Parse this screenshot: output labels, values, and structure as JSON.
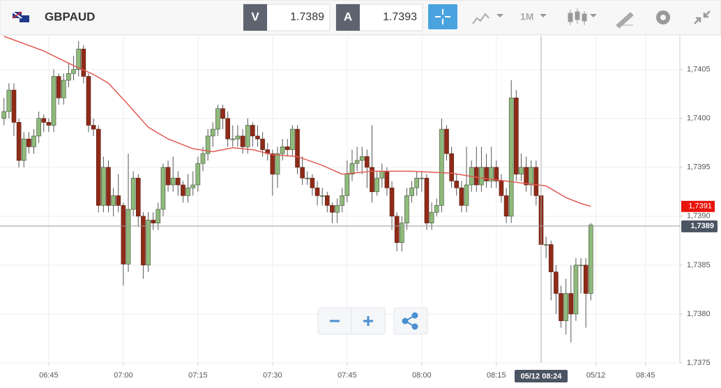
{
  "toolbar": {
    "symbol": "GBPAUD",
    "bid_label": "V",
    "bid": "1.7389",
    "ask_label": "A",
    "ask": "1.7393",
    "timeframe": "1M"
  },
  "chart_data": {
    "type": "candlestick",
    "x": [
      396,
      397,
      398,
      399,
      400,
      401,
      402,
      403,
      404,
      405,
      406,
      407,
      408,
      409,
      410,
      411,
      412,
      413,
      414,
      415,
      416,
      417,
      418,
      419,
      420,
      421,
      422,
      423,
      424,
      425,
      426,
      427,
      428,
      429,
      430,
      431,
      432,
      433,
      434,
      435,
      436,
      437,
      438,
      439,
      440,
      441,
      442,
      443,
      444,
      445,
      446,
      447,
      448,
      449,
      450,
      451,
      452,
      453,
      454,
      455,
      456,
      457,
      458,
      459,
      460,
      461,
      462,
      463,
      464,
      465,
      466,
      467,
      468,
      469,
      470,
      471,
      472,
      473,
      474,
      475,
      476,
      477,
      478,
      479,
      480,
      481,
      482,
      483,
      484,
      485,
      486,
      487,
      488,
      489,
      490,
      491,
      492,
      493,
      494,
      495,
      496,
      497,
      498,
      499,
      500,
      501,
      502,
      503,
      504,
      505,
      506,
      507,
      508,
      509,
      510,
      511,
      512,
      513,
      514
    ],
    "candles": [
      [
        1.74,
        1.74021,
        1.73993,
        1.74007
      ],
      [
        1.74007,
        1.74036,
        1.74,
        1.74029
      ],
      [
        1.74029,
        1.74036,
        1.73982,
        1.73996
      ],
      [
        1.73996,
        1.74,
        1.7395,
        1.73957
      ],
      [
        1.73957,
        1.73986,
        1.7395,
        1.73979
      ],
      [
        1.73979,
        1.73986,
        1.73964,
        1.73971
      ],
      [
        1.73971,
        1.73989,
        1.73964,
        1.73982
      ],
      [
        1.73982,
        1.74007,
        1.73975,
        1.74
      ],
      [
        1.74,
        1.74004,
        1.73986,
        1.73996
      ],
      [
        1.73996,
        1.74,
        1.73986,
        1.73993
      ],
      [
        1.73993,
        1.7405,
        1.73986,
        1.74043
      ],
      [
        1.74043,
        1.74046,
        1.74014,
        1.74021
      ],
      [
        1.74021,
        1.74046,
        1.74014,
        1.74039
      ],
      [
        1.74039,
        1.74057,
        1.74032,
        1.74046
      ],
      [
        1.74046,
        1.74064,
        1.74039,
        1.7405
      ],
      [
        1.7405,
        1.74079,
        1.74043,
        1.74071
      ],
      [
        1.74071,
        1.74075,
        1.74036,
        1.74043
      ],
      [
        1.74043,
        1.74046,
        1.73986,
        1.73993
      ],
      [
        1.73993,
        1.74,
        1.73982,
        1.73989
      ],
      [
        1.73989,
        1.73993,
        1.73904,
        1.73911
      ],
      [
        1.73911,
        1.73961,
        1.73904,
        1.7395
      ],
      [
        1.7395,
        1.73957,
        1.73904,
        1.73911
      ],
      [
        1.73911,
        1.73929,
        1.739,
        1.73921
      ],
      [
        1.73921,
        1.73943,
        1.73904,
        1.73911
      ],
      [
        1.73911,
        1.73914,
        1.73829,
        1.73851
      ],
      [
        1.73851,
        1.73964,
        1.73843,
        1.73907
      ],
      [
        1.73907,
        1.73946,
        1.739,
        1.73939
      ],
      [
        1.73939,
        1.73943,
        1.73889,
        1.739
      ],
      [
        1.739,
        1.73904,
        1.73836,
        1.7385
      ],
      [
        1.7385,
        1.73904,
        1.73843,
        1.73896
      ],
      [
        1.73896,
        1.73904,
        1.73886,
        1.73893
      ],
      [
        1.73893,
        1.73914,
        1.73886,
        1.73907
      ],
      [
        1.73907,
        1.73954,
        1.739,
        1.7395
      ],
      [
        1.7395,
        1.73957,
        1.73925,
        1.73932
      ],
      [
        1.73932,
        1.73961,
        1.73925,
        1.73939
      ],
      [
        1.73939,
        1.73946,
        1.73921,
        1.73932
      ],
      [
        1.73932,
        1.73936,
        1.73914,
        1.73921
      ],
      [
        1.73921,
        1.73943,
        1.73914,
        1.73929
      ],
      [
        1.73929,
        1.73946,
        1.73921,
        1.73932
      ],
      [
        1.73932,
        1.73961,
        1.73925,
        1.73954
      ],
      [
        1.73954,
        1.73971,
        1.73946,
        1.73964
      ],
      [
        1.73964,
        1.73989,
        1.73957,
        1.73982
      ],
      [
        1.73982,
        1.73996,
        1.73971,
        1.73989
      ],
      [
        1.73989,
        1.74014,
        1.73982,
        1.7401
      ],
      [
        1.7401,
        1.74014,
        1.73989,
        1.74
      ],
      [
        1.74,
        1.74007,
        1.73971,
        1.73979
      ],
      [
        1.73979,
        1.73993,
        1.73971,
        1.73979
      ],
      [
        1.73979,
        1.73993,
        1.73971,
        1.73982
      ],
      [
        1.73982,
        1.73989,
        1.73964,
        1.73971
      ],
      [
        1.73971,
        1.74,
        1.73964,
        1.73993
      ],
      [
        1.73993,
        1.73996,
        1.73971,
        1.73982
      ],
      [
        1.73982,
        1.73993,
        1.73971,
        1.73979
      ],
      [
        1.73979,
        1.73986,
        1.73961,
        1.73968
      ],
      [
        1.73968,
        1.73975,
        1.73957,
        1.73964
      ],
      [
        1.73964,
        1.73968,
        1.73921,
        1.73943
      ],
      [
        1.73943,
        1.73971,
        1.73929,
        1.73964
      ],
      [
        1.73964,
        1.73979,
        1.73957,
        1.73971
      ],
      [
        1.73971,
        1.73979,
        1.73961,
        1.73968
      ],
      [
        1.73968,
        1.73993,
        1.73961,
        1.73989
      ],
      [
        1.73989,
        1.73993,
        1.73943,
        1.7395
      ],
      [
        1.7395,
        1.73961,
        1.73932,
        1.73939
      ],
      [
        1.73939,
        1.73946,
        1.73932,
        1.73939
      ],
      [
        1.73939,
        1.73943,
        1.73921,
        1.73929
      ],
      [
        1.73929,
        1.73936,
        1.73911,
        1.73921
      ],
      [
        1.73921,
        1.73929,
        1.73911,
        1.73921
      ],
      [
        1.73921,
        1.73925,
        1.73904,
        1.73911
      ],
      [
        1.73911,
        1.73914,
        1.73893,
        1.73904
      ],
      [
        1.73904,
        1.73918,
        1.73893,
        1.73911
      ],
      [
        1.73911,
        1.73929,
        1.73904,
        1.73921
      ],
      [
        1.73921,
        1.73957,
        1.73914,
        1.73943
      ],
      [
        1.73943,
        1.73968,
        1.73936,
        1.73954
      ],
      [
        1.73954,
        1.73971,
        1.73946,
        1.73957
      ],
      [
        1.73957,
        1.73971,
        1.73943,
        1.73961
      ],
      [
        1.73961,
        1.73968,
        1.73929,
        1.7395
      ],
      [
        1.7395,
        1.73993,
        1.73914,
        1.73925
      ],
      [
        1.73925,
        1.73946,
        1.73921,
        1.73939
      ],
      [
        1.73939,
        1.73954,
        1.73929,
        1.73946
      ],
      [
        1.73946,
        1.7395,
        1.73921,
        1.73929
      ],
      [
        1.73929,
        1.73936,
        1.73886,
        1.739
      ],
      [
        1.739,
        1.73904,
        1.73864,
        1.73873
      ],
      [
        1.73873,
        1.739,
        1.73864,
        1.73893
      ],
      [
        1.73893,
        1.73929,
        1.73886,
        1.73921
      ],
      [
        1.73921,
        1.73936,
        1.73914,
        1.73929
      ],
      [
        1.73929,
        1.73946,
        1.73921,
        1.73939
      ],
      [
        1.73939,
        1.73946,
        1.73925,
        1.73939
      ],
      [
        1.73939,
        1.73943,
        1.73886,
        1.73893
      ],
      [
        1.73893,
        1.73914,
        1.73886,
        1.73904
      ],
      [
        1.73904,
        1.73918,
        1.739,
        1.73911
      ],
      [
        1.73911,
        1.74,
        1.73904,
        1.73989
      ],
      [
        1.73989,
        1.73993,
        1.73957,
        1.73964
      ],
      [
        1.73964,
        1.73971,
        1.73929,
        1.73936
      ],
      [
        1.73936,
        1.73943,
        1.73921,
        1.73929
      ],
      [
        1.73929,
        1.73936,
        1.73904,
        1.73911
      ],
      [
        1.73911,
        1.73971,
        1.73904,
        1.73932
      ],
      [
        1.73932,
        1.73957,
        1.73925,
        1.7395
      ],
      [
        1.7395,
        1.73971,
        1.73925,
        1.73932
      ],
      [
        1.73932,
        1.73971,
        1.73925,
        1.7395
      ],
      [
        1.7395,
        1.73964,
        1.73929,
        1.73936
      ],
      [
        1.73936,
        1.73971,
        1.73929,
        1.7395
      ],
      [
        1.7395,
        1.73957,
        1.73929,
        1.73936
      ],
      [
        1.73936,
        1.73943,
        1.73914,
        1.73921
      ],
      [
        1.73921,
        1.73929,
        1.73893,
        1.739
      ],
      [
        1.739,
        1.74039,
        1.73893,
        1.74021
      ],
      [
        1.74021,
        1.74029,
        1.73936,
        1.73943
      ],
      [
        1.73943,
        1.73964,
        1.73936,
        1.7395
      ],
      [
        1.7395,
        1.73961,
        1.73925,
        1.73932
      ],
      [
        1.73932,
        1.73957,
        1.73921,
        1.7395
      ],
      [
        1.7395,
        1.73957,
        1.73911,
        1.73921
      ],
      [
        1.73921,
        1.73929,
        1.73864,
        1.73871
      ],
      [
        1.73871,
        1.73879,
        1.73857,
        1.73871
      ],
      [
        1.73871,
        1.73875,
        1.73814,
        1.73843
      ],
      [
        1.73843,
        1.7385,
        1.738,
        1.73821
      ],
      [
        1.73821,
        1.73829,
        1.73786,
        1.73793
      ],
      [
        1.73793,
        1.73836,
        1.73779,
        1.73821
      ],
      [
        1.73821,
        1.7385,
        1.73771,
        1.738
      ],
      [
        1.738,
        1.73857,
        1.73793,
        1.7385
      ],
      [
        1.7385,
        1.73857,
        1.73821,
        1.7385
      ],
      [
        1.7385,
        1.73857,
        1.73786,
        1.73821
      ],
      [
        1.73821,
        1.73893,
        1.73814,
        1.73891
      ]
    ],
    "up_color": "#8fba7c",
    "down_color": "#8e2b18",
    "moving_average": {
      "color": "#e05a52",
      "x": [
        396,
        404,
        410,
        414,
        417,
        421,
        425,
        429,
        434,
        438,
        442,
        446,
        450,
        455,
        460,
        464,
        470,
        478,
        486,
        492,
        500,
        505,
        509,
        512,
        514
      ],
      "values": [
        1.74084,
        1.74069,
        1.74054,
        1.74045,
        1.74036,
        1.74014,
        1.73991,
        1.73979,
        1.73969,
        1.73966,
        1.7397,
        1.73968,
        1.73963,
        1.73961,
        1.73952,
        1.73943,
        1.73946,
        1.73946,
        1.73944,
        1.73939,
        1.73934,
        1.73931,
        1.73919,
        1.73913,
        1.7391
      ]
    },
    "xlim": [
      395.2,
      531.9
    ],
    "ylim": [
      1.7375,
      1.74084
    ],
    "yticks": [
      {
        "value": 1.7375,
        "label": "1,7375"
      },
      {
        "value": 1.738,
        "label": "1,7380"
      },
      {
        "value": 1.7385,
        "label": "1,7385"
      },
      {
        "value": 1.739,
        "label": "1,7390"
      },
      {
        "value": 1.7395,
        "label": "1,7395"
      },
      {
        "value": 1.74,
        "label": "1,7400"
      },
      {
        "value": 1.7405,
        "label": "1,7405"
      }
    ],
    "xticks": [
      {
        "value": 405,
        "label": "06:45"
      },
      {
        "value": 420,
        "label": "07:00"
      },
      {
        "value": 435,
        "label": "07:15"
      },
      {
        "value": 450,
        "label": "07:30"
      },
      {
        "value": 465,
        "label": "07:45"
      },
      {
        "value": 480,
        "label": "08:00"
      },
      {
        "value": 495,
        "label": "08:15"
      },
      {
        "value": 515,
        "label": "05/12"
      },
      {
        "value": 525,
        "label": "08:45"
      }
    ],
    "ma_last": {
      "value": 1.7391,
      "label": "1,7391"
    },
    "last_price": {
      "value": 1.7389,
      "label": "1,7389"
    },
    "crosshair": {
      "value": 504,
      "label": "05/12 08:24"
    }
  }
}
